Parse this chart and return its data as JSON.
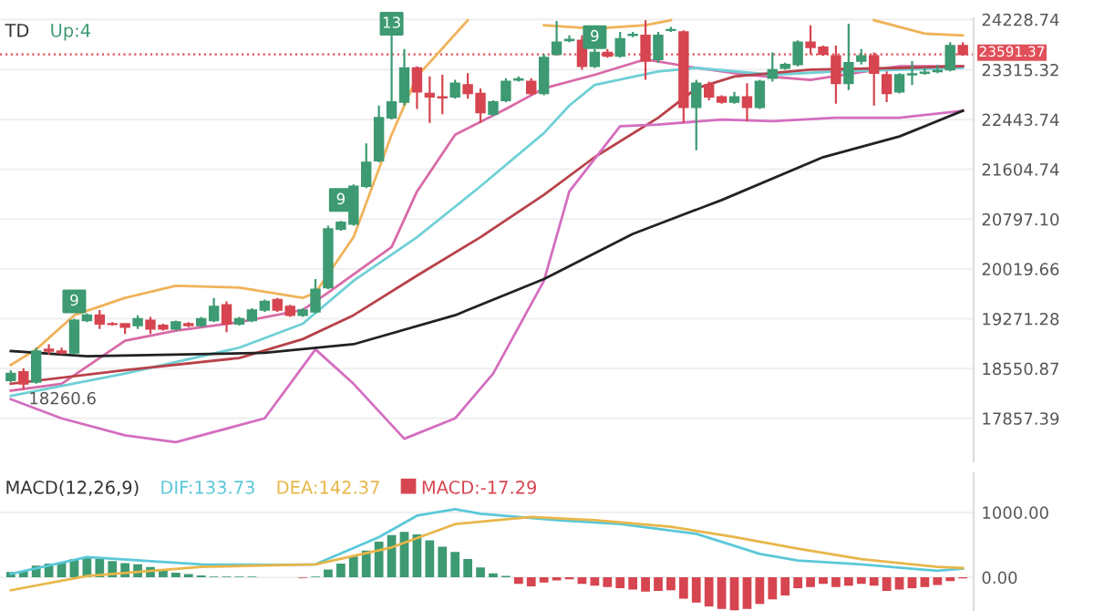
{
  "chart_data": [
    {
      "type": "candlestick",
      "title": "TD",
      "subtitle": "Up:4",
      "log": true,
      "grid": "y",
      "categories": [
        null,
        null,
        null,
        null,
        null,
        null,
        null,
        null,
        null,
        null,
        null,
        null,
        null,
        null,
        null,
        null,
        null,
        null,
        null,
        null,
        null,
        null,
        null,
        null,
        null,
        null,
        null,
        null,
        null,
        null,
        null,
        null,
        null,
        null,
        null,
        null,
        null,
        null,
        null,
        null,
        null,
        null,
        null,
        null,
        null,
        null,
        null,
        null,
        null,
        null,
        null,
        null,
        null,
        null,
        null,
        null,
        null,
        null,
        null,
        null,
        null,
        null,
        null,
        null,
        null,
        null,
        null,
        null,
        null,
        null,
        null,
        null,
        null,
        null,
        null,
        null
      ],
      "ohlc": [
        [
          18383,
          18527,
          18360,
          18479
        ],
        [
          18503,
          18551,
          18260.6,
          18336
        ],
        [
          18360,
          18849,
          18336,
          18800
        ],
        [
          18824,
          18899,
          18750,
          18800
        ],
        [
          18800,
          18849,
          18750,
          18775
        ],
        [
          18775,
          19271,
          18750,
          19246
        ],
        [
          19246,
          19349,
          19222,
          19323
        ],
        [
          19323,
          19400,
          19122,
          19197
        ],
        [
          19197,
          19222,
          19172,
          19190
        ],
        [
          19197,
          19197,
          19048,
          19147
        ],
        [
          19172,
          19323,
          19122,
          19271
        ],
        [
          19246,
          19297,
          19048,
          19122
        ],
        [
          19172,
          19197,
          19098,
          19122
        ],
        [
          19122,
          19246,
          19098,
          19222
        ],
        [
          19197,
          19222,
          19147,
          19172
        ],
        [
          19172,
          19297,
          19147,
          19271
        ],
        [
          19246,
          19581,
          19222,
          19452
        ],
        [
          19478,
          19529,
          19073,
          19197
        ],
        [
          19197,
          19297,
          19172,
          19271
        ],
        [
          19246,
          19426,
          19222,
          19400
        ],
        [
          19400,
          19555,
          19374,
          19529
        ],
        [
          19555,
          19581,
          19374,
          19400
        ],
        [
          19452,
          19478,
          19297,
          19323
        ],
        [
          19323,
          19426,
          19297,
          19400
        ],
        [
          19374,
          19865,
          19349,
          19710
        ],
        [
          19736,
          20693,
          19710,
          20641
        ],
        [
          20641,
          20770,
          20615,
          20745
        ],
        [
          20719,
          21355,
          20693,
          21326
        ],
        [
          21326,
          22039,
          21298,
          21720
        ],
        [
          21749,
          22685,
          21720,
          22475
        ],
        [
          22475,
          24122,
          22444,
          22745
        ],
        [
          22745,
          23687,
          22685,
          23346
        ],
        [
          23346,
          23377,
          22625,
          22925
        ],
        [
          22895,
          23195,
          22386,
          22835
        ],
        [
          22835,
          23225,
          22535,
          22820
        ],
        [
          22835,
          23135,
          22805,
          23075
        ],
        [
          23045,
          23255,
          22805,
          22895
        ],
        [
          22895,
          22985,
          22386,
          22565
        ],
        [
          22535,
          22775,
          22505,
          22745
        ],
        [
          22775,
          23165,
          22745,
          23105
        ],
        [
          23135,
          23195,
          23105,
          23150
        ],
        [
          23105,
          23165,
          22865,
          22895
        ],
        [
          22895,
          23594,
          22865,
          23532
        ],
        [
          23594,
          24200,
          23563,
          23811
        ],
        [
          23843,
          23936,
          23811,
          23860
        ],
        [
          23843,
          23936,
          23315,
          23377
        ],
        [
          23377,
          23687,
          23346,
          23625
        ],
        [
          23625,
          23687,
          23532,
          23563
        ],
        [
          23563,
          23998,
          23532,
          23874
        ],
        [
          23936,
          23998,
          23905,
          23950
        ],
        [
          23936,
          24215,
          23135,
          23470
        ],
        [
          23501,
          23998,
          23439,
          23936
        ],
        [
          24029,
          24090,
          23998,
          24040
        ],
        [
          23998,
          24029,
          22386,
          22655
        ],
        [
          22655,
          23135,
          21923,
          23075
        ],
        [
          23045,
          23105,
          22775,
          22835
        ],
        [
          22835,
          22865,
          22715,
          22745
        ],
        [
          22745,
          22925,
          22715,
          22835
        ],
        [
          22835,
          23075,
          22415,
          22655
        ],
        [
          22655,
          23135,
          22625,
          23105
        ],
        [
          23165,
          23625,
          23105,
          23315
        ],
        [
          23346,
          23439,
          23315,
          23408
        ],
        [
          23408,
          23843,
          23377,
          23811
        ],
        [
          23811,
          24122,
          23594,
          23718
        ],
        [
          23718,
          23750,
          23563,
          23594
        ],
        [
          23563,
          23750,
          22715,
          23075
        ],
        [
          23075,
          24150,
          22955,
          23439
        ],
        [
          23470,
          23687,
          23408,
          23563
        ],
        [
          23563,
          23625,
          22685,
          23255
        ],
        [
          23225,
          23285,
          22745,
          22895
        ],
        [
          22925,
          23255,
          22895,
          23225
        ],
        [
          23225,
          23470,
          23045,
          23240
        ],
        [
          23255,
          23350,
          23225,
          23270
        ],
        [
          23285,
          23400,
          23255,
          23300
        ],
        [
          23315,
          23811,
          23285,
          23750
        ],
        [
          23750,
          23811,
          23563,
          23591.37
        ]
      ],
      "colors": [
        "#3d9a72",
        "#d64550",
        "#3d9a72",
        "#d64550",
        "#d64550",
        "#3d9a72",
        "#3d9a72",
        "#d64550",
        "#d64550",
        "#d64550",
        "#3d9a72",
        "#d64550",
        "#d64550",
        "#3d9a72",
        "#d64550",
        "#3d9a72",
        "#3d9a72",
        "#d64550",
        "#3d9a72",
        "#3d9a72",
        "#3d9a72",
        "#d64550",
        "#d64550",
        "#3d9a72",
        "#3d9a72",
        "#3d9a72",
        "#3d9a72",
        "#3d9a72",
        "#3d9a72",
        "#3d9a72",
        "#3d9a72",
        "#3d9a72",
        "#d64550",
        "#d64550",
        "#d64550",
        "#3d9a72",
        "#d64550",
        "#d64550",
        "#3d9a72",
        "#3d9a72",
        "#3d9a72",
        "#d64550",
        "#3d9a72",
        "#3d9a72",
        "#3d9a72",
        "#d64550",
        "#3d9a72",
        "#d64550",
        "#3d9a72",
        "#3d9a72",
        "#d64550",
        "#3d9a72",
        "#3d9a72",
        "#d64550",
        "#3d9a72",
        "#d64550",
        "#d64550",
        "#3d9a72",
        "#d64550",
        "#3d9a72",
        "#3d9a72",
        "#3d9a72",
        "#3d9a72",
        "#d64550",
        "#d64550",
        "#d64550",
        "#3d9a72",
        "#3d9a72",
        "#d64550",
        "#d64550",
        "#3d9a72",
        "#3d9a72",
        "#3d9a72",
        "#3d9a72",
        "#3d9a72",
        "#d64550"
      ],
      "series": [
        {
          "type": "line",
          "color": "#f0b35a",
          "values": [
            18601,
            null,
            18825,
            null,
            null,
            19323,
            null,
            null,
            null,
            19581,
            null,
            null,
            null,
            19762,
            null,
            null,
            null,
            null,
            19736,
            null,
            null,
            null,
            null,
            19581,
            19659,
            null,
            null,
            20512,
            null,
            null,
            22184,
            null,
            23195,
            null,
            null,
            null,
            24215,
            null,
            null,
            null,
            null,
            null,
            null,
            null,
            null,
            null,
            null,
            null,
            null,
            null,
            null,
            null,
            null,
            null,
            null,
            null,
            null,
            null,
            null,
            null,
            null,
            null,
            null,
            null,
            null,
            null,
            null,
            null,
            null,
            null,
            null,
            null,
            null,
            null,
            null,
            null
          ]
        },
        {
          "type": "line",
          "color": "#f0b35a",
          "values": [
            null,
            null,
            null,
            null,
            null,
            null,
            null,
            null,
            null,
            null,
            null,
            null,
            null,
            null,
            null,
            null,
            null,
            null,
            null,
            null,
            null,
            null,
            null,
            null,
            null,
            null,
            null,
            null,
            null,
            null,
            null,
            null,
            null,
            null,
            null,
            null,
            null,
            null,
            null,
            null,
            null,
            null,
            24122,
            null,
            null,
            null,
            24060,
            null,
            null,
            null,
            24122,
            null,
            24215,
            null,
            null,
            null,
            null,
            null,
            null,
            null,
            null,
            null,
            null,
            null,
            null,
            null,
            null,
            null,
            null,
            null,
            null,
            null,
            null,
            null,
            null,
            null
          ]
        },
        {
          "type": "line",
          "color": "#f0b35a",
          "values": [
            null,
            null,
            null,
            null,
            null,
            null,
            null,
            null,
            null,
            null,
            null,
            null,
            null,
            null,
            null,
            null,
            null,
            null,
            null,
            null,
            null,
            null,
            null,
            null,
            null,
            null,
            null,
            null,
            null,
            null,
            null,
            null,
            null,
            null,
            null,
            null,
            null,
            null,
            null,
            null,
            null,
            null,
            null,
            null,
            null,
            null,
            null,
            null,
            null,
            null,
            null,
            null,
            null,
            null,
            null,
            null,
            null,
            null,
            null,
            null,
            null,
            null,
            null,
            null,
            null,
            null,
            null,
            null,
            24215,
            null,
            null,
            null,
            23967,
            null,
            null,
            23936
          ]
        },
        {
          "type": "line",
          "color": "#d86aa8",
          "values": [
            18240,
            null,
            null,
            null,
            18336,
            null,
            null,
            null,
            null,
            18949,
            null,
            null,
            null,
            19097,
            null,
            null,
            null,
            null,
            19221,
            null,
            null,
            null,
            null,
            19400,
            null,
            19659,
            null,
            null,
            null,
            null,
            20357,
            null,
            21242,
            null,
            null,
            22184,
            null,
            null,
            null,
            22625,
            null,
            null,
            22985,
            null,
            null,
            null,
            23225,
            null,
            null,
            null,
            23502,
            null,
            null,
            null,
            23347,
            null,
            null,
            null,
            23225,
            null,
            null,
            null,
            null,
            23135,
            null,
            null,
            null,
            null,
            null,
            null,
            23378,
            null,
            null,
            null,
            null,
            23378
          ]
        },
        {
          "type": "line",
          "color": "#6fd0d6",
          "values": [
            18168,
            null,
            null,
            null,
            null,
            null,
            null,
            null,
            null,
            18479,
            null,
            null,
            null,
            null,
            null,
            null,
            null,
            null,
            18849,
            null,
            null,
            null,
            null,
            19197,
            null,
            null,
            null,
            19839,
            null,
            null,
            null,
            null,
            20512,
            null,
            null,
            null,
            null,
            21326,
            null,
            null,
            null,
            null,
            22213,
            null,
            22685,
            null,
            23045,
            null,
            null,
            null,
            null,
            23285,
            null,
            null,
            23347,
            null,
            null,
            null,
            null,
            null,
            23225,
            null,
            null,
            null,
            null,
            23285,
            null,
            null,
            null,
            null,
            null,
            null,
            null,
            null,
            null,
            23347
          ]
        },
        {
          "type": "line",
          "color": "#b8424a",
          "values": [
            18336,
            null,
            null,
            null,
            null,
            null,
            null,
            null,
            null,
            18527,
            null,
            null,
            null,
            null,
            null,
            null,
            null,
            null,
            18701,
            null,
            null,
            null,
            null,
            18973,
            null,
            null,
            null,
            19323,
            null,
            null,
            null,
            null,
            19917,
            null,
            null,
            null,
            null,
            20512,
            null,
            null,
            null,
            null,
            21187,
            null,
            null,
            null,
            21808,
            null,
            null,
            null,
            null,
            22475,
            null,
            null,
            22985,
            null,
            null,
            23195,
            null,
            null,
            null,
            null,
            null,
            23315,
            null,
            null,
            null,
            null,
            null,
            null,
            23347,
            null,
            null,
            null,
            null,
            23378
          ]
        },
        {
          "type": "line",
          "color": "#d46ec0",
          "values": [
            18120,
            null,
            null,
            null,
            17857,
            null,
            null,
            null,
            null,
            17627,
            null,
            null,
            null,
            17535,
            null,
            null,
            null,
            null,
            null,
            null,
            17857,
            null,
            null,
            null,
            18825,
            null,
            null,
            18336,
            null,
            null,
            null,
            17581,
            null,
            null,
            null,
            17857,
            null,
            null,
            18479,
            null,
            null,
            null,
            19839,
            null,
            21242,
            null,
            null,
            null,
            22328,
            null,
            null,
            22357,
            null,
            null,
            null,
            null,
            22444,
            null,
            null,
            null,
            22415,
            null,
            null,
            null,
            null,
            22475,
            null,
            null,
            null,
            null,
            22475,
            null,
            null,
            null,
            null,
            22595
          ]
        },
        {
          "type": "line",
          "color": "#222222",
          "values": [
            18800,
            null,
            null,
            null,
            null,
            null,
            18726,
            null,
            null,
            null,
            null,
            null,
            null,
            null,
            null,
            null,
            null,
            null,
            null,
            null,
            18775,
            null,
            null,
            null,
            null,
            null,
            null,
            18899,
            null,
            null,
            null,
            null,
            null,
            null,
            null,
            19323,
            null,
            null,
            null,
            null,
            null,
            null,
            19865,
            null,
            null,
            null,
            null,
            null,
            null,
            20564,
            null,
            null,
            null,
            null,
            null,
            null,
            21103,
            null,
            null,
            null,
            null,
            null,
            null,
            null,
            21807,
            null,
            null,
            null,
            null,
            null,
            22155,
            null,
            null,
            null,
            null,
            22595
          ]
        },
        {
          "type": "scatter",
          "color": "#3d9a72",
          "marker": "square",
          "values": [
            null,
            null,
            null,
            null,
            null,
            19529,
            null,
            null,
            null,
            null,
            null,
            null,
            null,
            null,
            null,
            null,
            null,
            null,
            null,
            null,
            null,
            null,
            null,
            null,
            null,
            null,
            21103,
            null,
            null,
            null,
            24150,
            null,
            null,
            null,
            null,
            null,
            null,
            null,
            null,
            null,
            null,
            null,
            null,
            null,
            null,
            null,
            23905,
            null,
            null,
            null,
            null,
            null,
            null,
            null,
            null,
            null,
            null,
            null,
            null,
            null,
            null,
            null,
            null,
            null,
            null,
            null,
            null,
            null,
            null,
            null,
            null,
            null,
            null,
            null,
            null,
            null
          ]
        }
      ],
      "ylim": [
        17280,
        24250
      ],
      "yticks": [
        24228.74,
        23315.32,
        22443.74,
        21604.74,
        {
          "value": 20797.1,
          "label": "20797.10"
        },
        20019.66,
        19271.28,
        18550.87,
        17857.39
      ],
      "ref_lines": [
        {
          "axis": "y",
          "value": 23591.37,
          "label": "23591.37",
          "color": "#e0505a",
          "line_style": "dotted"
        }
      ],
      "annotations": [
        {
          "text": "18260.6",
          "y": 18260.6
        },
        {
          "text": "9",
          "y": 19529
        },
        {
          "text": "9",
          "y": 21103
        },
        {
          "text": "13",
          "y": 24150
        },
        {
          "text": "9",
          "y": 23905
        }
      ]
    },
    {
      "type": "bar",
      "title": "MACD(12,26,9)",
      "legend": "top left",
      "grid": "y",
      "categories": [
        null,
        null,
        null,
        null,
        null,
        null,
        null,
        null,
        null,
        null,
        null,
        null,
        null,
        null,
        null,
        null,
        null,
        null,
        null,
        null,
        null,
        null,
        null,
        null,
        null,
        null,
        null,
        null,
        null,
        null,
        null,
        null,
        null,
        null,
        null,
        null,
        null,
        null,
        null,
        null,
        null,
        null,
        null,
        null,
        null,
        null,
        null,
        null,
        null,
        null,
        null,
        null,
        null,
        null,
        null,
        null,
        null,
        null,
        null,
        null,
        null,
        null,
        null,
        null,
        null,
        null,
        null,
        null,
        null,
        null,
        null,
        null,
        null,
        null,
        null,
        null
      ],
      "series": [
        {
          "name": "DIF:133.73",
          "type": "line",
          "color": "#5bc8d8",
          "values": [
            50,
            null,
            null,
            null,
            null,
            null,
            310,
            null,
            null,
            null,
            null,
            null,
            null,
            null,
            null,
            200,
            null,
            null,
            null,
            null,
            null,
            190,
            null,
            null,
            200,
            null,
            null,
            null,
            null,
            620,
            null,
            null,
            950,
            null,
            null,
            1050,
            null,
            980,
            null,
            null,
            null,
            null,
            null,
            880,
            null,
            null,
            null,
            null,
            820,
            null,
            null,
            null,
            null,
            null,
            670,
            null,
            null,
            null,
            null,
            360,
            null,
            null,
            260,
            null,
            null,
            null,
            null,
            200,
            null,
            null,
            null,
            null,
            null,
            100,
            null,
            133.73
          ]
        },
        {
          "name": "DEA:142.37",
          "type": "line",
          "color": "#e8b64a",
          "values": [
            -200,
            null,
            null,
            null,
            null,
            null,
            20,
            null,
            null,
            null,
            null,
            null,
            null,
            null,
            null,
            160,
            null,
            null,
            null,
            null,
            null,
            null,
            null,
            null,
            200,
            null,
            null,
            null,
            null,
            null,
            460,
            null,
            null,
            null,
            null,
            820,
            null,
            null,
            null,
            null,
            null,
            930,
            null,
            null,
            null,
            null,
            880,
            null,
            null,
            null,
            null,
            null,
            780,
            null,
            null,
            null,
            null,
            620,
            null,
            null,
            null,
            null,
            440,
            null,
            null,
            null,
            null,
            280,
            null,
            null,
            null,
            null,
            null,
            160,
            null,
            142.37
          ]
        },
        {
          "name": "MACD:-17.29",
          "type": "bar",
          "color": "#d64550",
          "values": [
            80,
            100,
            180,
            210,
            230,
            280,
            310,
            280,
            250,
            220,
            200,
            160,
            120,
            70,
            50,
            30,
            10,
            10,
            10,
            10,
            0,
            0,
            0,
            -10,
            10,
            120,
            210,
            320,
            410,
            550,
            650,
            700,
            660,
            570,
            470,
            390,
            280,
            150,
            60,
            20,
            -100,
            -140,
            -80,
            -50,
            -30,
            -100,
            -130,
            -150,
            -170,
            -190,
            -220,
            -210,
            -200,
            -330,
            -390,
            -450,
            -490,
            -510,
            -490,
            -410,
            -340,
            -280,
            -170,
            -150,
            -100,
            -150,
            -130,
            -100,
            -130,
            -210,
            -190,
            -170,
            -150,
            -120,
            -60,
            -17.29
          ],
          "colors": [
            "#3d9a72",
            "#3d9a72",
            "#3d9a72",
            "#3d9a72",
            "#3d9a72",
            "#3d9a72",
            "#3d9a72",
            "#3d9a72",
            "#3d9a72",
            "#3d9a72",
            "#3d9a72",
            "#3d9a72",
            "#3d9a72",
            "#3d9a72",
            "#3d9a72",
            "#3d9a72",
            "#3d9a72",
            "#3d9a72",
            "#3d9a72",
            "#3d9a72",
            "#3d9a72",
            "#3d9a72",
            "#3d9a72",
            "#d64550",
            "#3d9a72",
            "#3d9a72",
            "#3d9a72",
            "#3d9a72",
            "#3d9a72",
            "#3d9a72",
            "#3d9a72",
            "#3d9a72",
            "#3d9a72",
            "#3d9a72",
            "#3d9a72",
            "#3d9a72",
            "#3d9a72",
            "#3d9a72",
            "#3d9a72",
            "#3d9a72",
            "#d64550",
            "#d64550",
            "#d64550",
            "#d64550",
            "#d64550",
            "#d64550",
            "#d64550",
            "#d64550",
            "#d64550",
            "#d64550",
            "#d64550",
            "#d64550",
            "#d64550",
            "#d64550",
            "#d64550",
            "#d64550",
            "#d64550",
            "#d64550",
            "#d64550",
            "#d64550",
            "#d64550",
            "#d64550",
            "#d64550",
            "#d64550",
            "#d64550",
            "#d64550",
            "#d64550",
            "#d64550",
            "#d64550",
            "#d64550",
            "#d64550",
            "#d64550",
            "#d64550",
            "#d64550",
            "#d64550",
            "#d64550"
          ]
        }
      ],
      "ylim": [
        -520,
        1600
      ],
      "yticks": [
        {
          "value": 1000,
          "label": "1000.00"
        },
        {
          "value": 0,
          "label": "0.00"
        }
      ]
    }
  ]
}
